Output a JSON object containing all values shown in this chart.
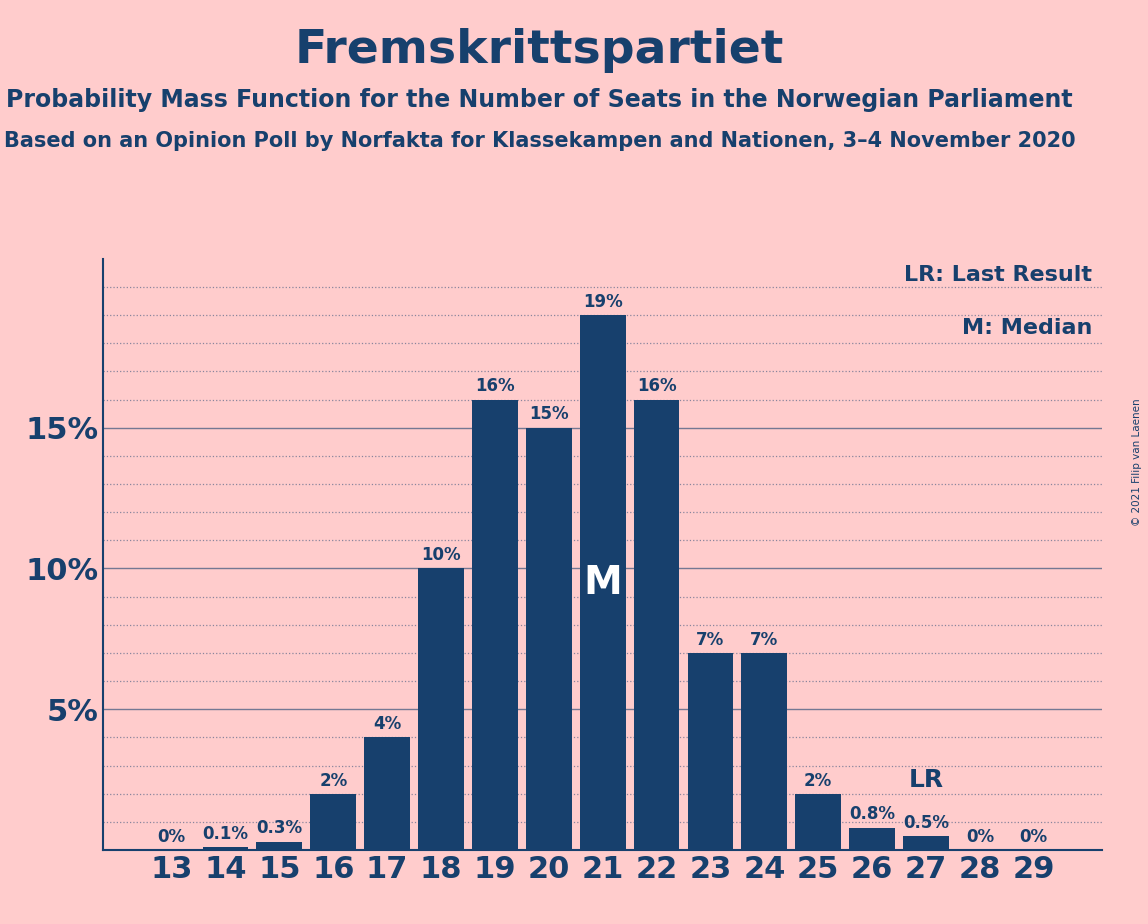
{
  "title": "Fremskrittspartiet",
  "subtitle1": "Probability Mass Function for the Number of Seats in the Norwegian Parliament",
  "subtitle2": "Based on an Opinion Poll by Norfakta for Klassekampen and Nationen, 3–4 November 2020",
  "copyright": "© 2021 Filip van Laenen",
  "seats": [
    13,
    14,
    15,
    16,
    17,
    18,
    19,
    20,
    21,
    22,
    23,
    24,
    25,
    26,
    27,
    28,
    29
  ],
  "probabilities": [
    0.0,
    0.1,
    0.3,
    2.0,
    4.0,
    10.0,
    16.0,
    15.0,
    19.0,
    16.0,
    7.0,
    7.0,
    2.0,
    0.8,
    0.5,
    0.0,
    0.0
  ],
  "bar_color": "#17406D",
  "background_color": "#FFCCCC",
  "text_color": "#17406D",
  "median_seat": 21,
  "last_result_seat": 27,
  "ylim": [
    0,
    21
  ],
  "legend_lr": "LR: Last Result",
  "legend_m": "M: Median"
}
